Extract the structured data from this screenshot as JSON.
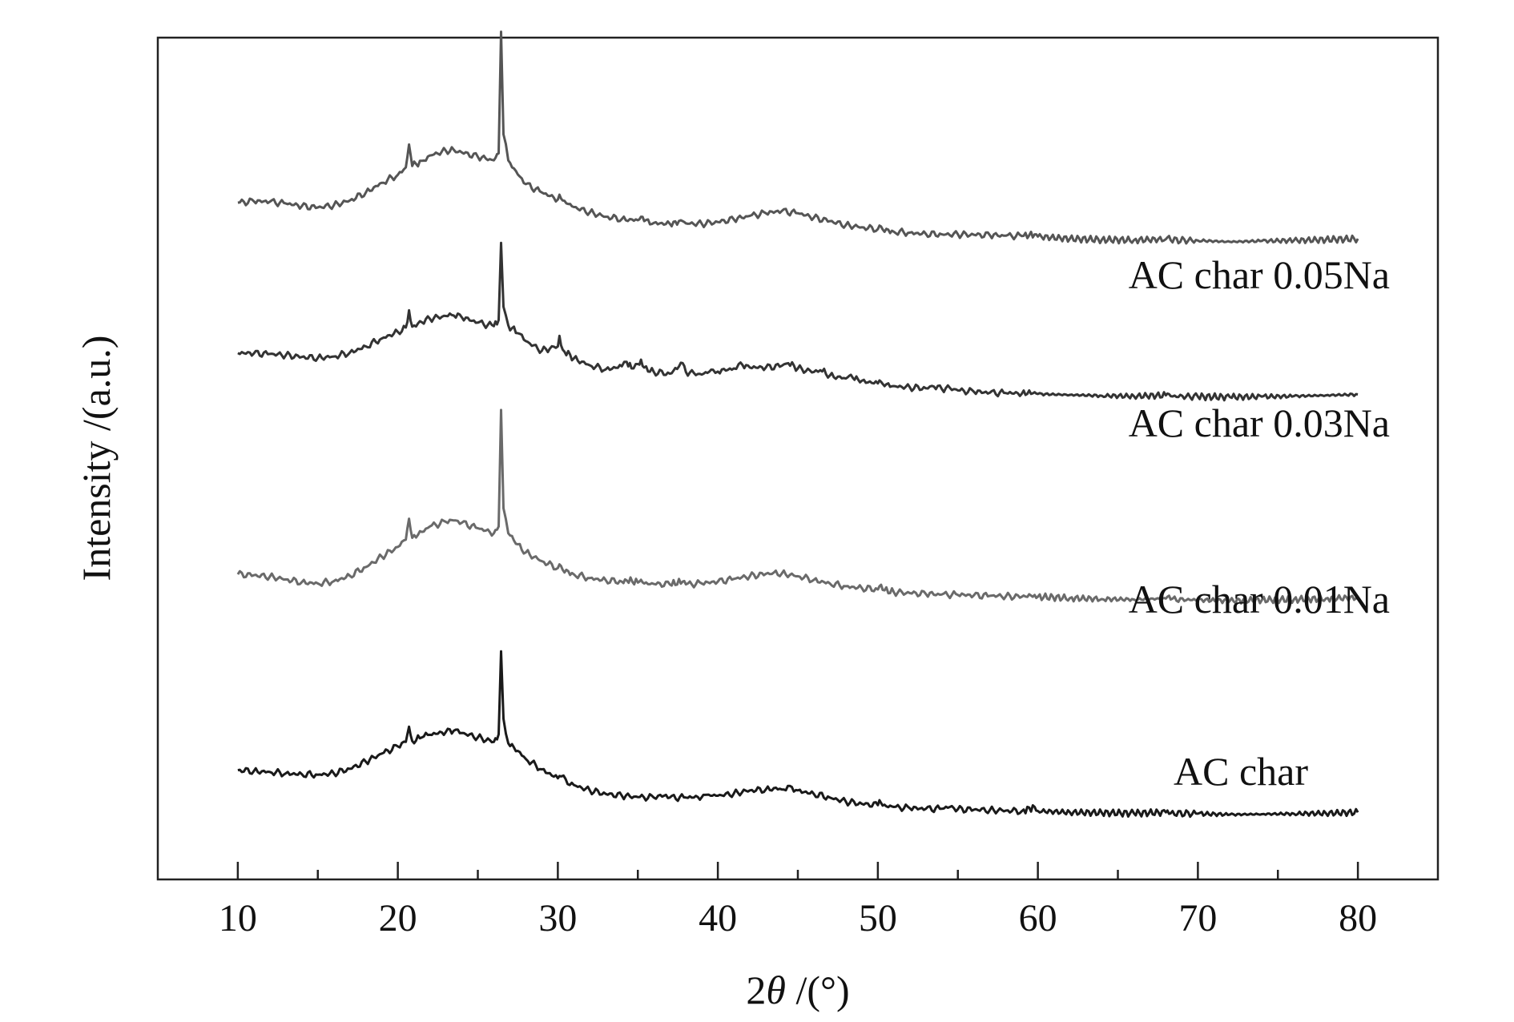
{
  "chart_data": {
    "type": "line",
    "title": "",
    "xlabel": {
      "prefix": "2",
      "symbol": "θ",
      "suffix": " /(°)"
    },
    "ylabel": "Intensity /(a.u.)",
    "xlim": [
      5,
      85
    ],
    "xticks": [
      10,
      20,
      30,
      40,
      50,
      60,
      70,
      80
    ],
    "grid": false,
    "legend": "none",
    "series": [
      {
        "name": "AC char 0.05Na",
        "color": "#555555",
        "points": [
          [
            10,
            300
          ],
          [
            11,
            303
          ],
          [
            12,
            302
          ],
          [
            13,
            298
          ],
          [
            14,
            292
          ],
          [
            15,
            289
          ],
          [
            16,
            294
          ],
          [
            17,
            305
          ],
          [
            18,
            323
          ],
          [
            19,
            345
          ],
          [
            20,
            363
          ],
          [
            20.5,
            380
          ],
          [
            20.7,
            432
          ],
          [
            20.9,
            383
          ],
          [
            21.5,
            395
          ],
          [
            22,
            407
          ],
          [
            23,
            418
          ],
          [
            23.5,
            420
          ],
          [
            24,
            414
          ],
          [
            25,
            404
          ],
          [
            26,
            396
          ],
          [
            26.3,
            412
          ],
          [
            26.45,
            688
          ],
          [
            26.6,
            455
          ],
          [
            26.9,
            396
          ],
          [
            27.5,
            364
          ],
          [
            28,
            342
          ],
          [
            29,
            323
          ],
          [
            30,
            307
          ],
          [
            30.1,
            318
          ],
          [
            30.3,
            305
          ],
          [
            31,
            290
          ],
          [
            32,
            278
          ],
          [
            33,
            268
          ],
          [
            34,
            263
          ],
          [
            35,
            260
          ],
          [
            35.2,
            268
          ],
          [
            35.4,
            258
          ],
          [
            36,
            254
          ],
          [
            37,
            252
          ],
          [
            37.8,
            258
          ],
          [
            38,
            253
          ],
          [
            39,
            252
          ],
          [
            40,
            256
          ],
          [
            41,
            262
          ],
          [
            42,
            270
          ],
          [
            43,
            276
          ],
          [
            44,
            281
          ],
          [
            45,
            276
          ],
          [
            46,
            266
          ],
          [
            47,
            258
          ],
          [
            48,
            249
          ],
          [
            49,
            244
          ],
          [
            50,
            240
          ],
          [
            50.1,
            248
          ],
          [
            50.3,
            239
          ],
          [
            51,
            234
          ],
          [
            52,
            232
          ],
          [
            53,
            229
          ],
          [
            54,
            228
          ],
          [
            55,
            228
          ],
          [
            56,
            227
          ],
          [
            57,
            226
          ],
          [
            58,
            225
          ],
          [
            59,
            224
          ],
          [
            59.8,
            228
          ],
          [
            60,
            223
          ],
          [
            62,
            218
          ],
          [
            64,
            216
          ],
          [
            66,
            215
          ],
          [
            68,
            217
          ],
          [
            68.1,
            221
          ],
          [
            68.3,
            215
          ],
          [
            70,
            214
          ],
          [
            72,
            211
          ],
          [
            74,
            213
          ],
          [
            76,
            214
          ],
          [
            78,
            216
          ],
          [
            80,
            218
          ]
        ]
      },
      {
        "name": "AC char 0.03Na",
        "color": "#333333",
        "points": [
          [
            10,
            255
          ],
          [
            11,
            254
          ],
          [
            12,
            253
          ],
          [
            13,
            250
          ],
          [
            14,
            246
          ],
          [
            15,
            244
          ],
          [
            16,
            247
          ],
          [
            17,
            256
          ],
          [
            18,
            270
          ],
          [
            19,
            288
          ],
          [
            20,
            303
          ],
          [
            20.5,
            313
          ],
          [
            20.7,
            352
          ],
          [
            20.9,
            315
          ],
          [
            21.5,
            325
          ],
          [
            22,
            333
          ],
          [
            23,
            339
          ],
          [
            23.5,
            340
          ],
          [
            24,
            336
          ],
          [
            25,
            324
          ],
          [
            26,
            316
          ],
          [
            26.3,
            330
          ],
          [
            26.45,
            505
          ],
          [
            26.6,
            360
          ],
          [
            26.9,
            318
          ],
          [
            27.5,
            300
          ],
          [
            28,
            282
          ],
          [
            29,
            260
          ],
          [
            29.5,
            265
          ],
          [
            30,
            270
          ],
          [
            30.1,
            294
          ],
          [
            30.3,
            263
          ],
          [
            31,
            243
          ],
          [
            32,
            227
          ],
          [
            33,
            218
          ],
          [
            34,
            225
          ],
          [
            34.3,
            235
          ],
          [
            34.6,
            220
          ],
          [
            35,
            230
          ],
          [
            35.2,
            240
          ],
          [
            35.4,
            222
          ],
          [
            36,
            212
          ],
          [
            37,
            208
          ],
          [
            37.8,
            232
          ],
          [
            38,
            212
          ],
          [
            39,
            206
          ],
          [
            39.7,
            217
          ],
          [
            40,
            213
          ],
          [
            41,
            220
          ],
          [
            41.3,
            230
          ],
          [
            42,
            222
          ],
          [
            43,
            222
          ],
          [
            44,
            226
          ],
          [
            44.4,
            232
          ],
          [
            45,
            220
          ],
          [
            46,
            212
          ],
          [
            46.4,
            216
          ],
          [
            47,
            204
          ],
          [
            48,
            197
          ],
          [
            48.2,
            203
          ],
          [
            49,
            192
          ],
          [
            50,
            186
          ],
          [
            50.1,
            193
          ],
          [
            50.3,
            185
          ],
          [
            51,
            180
          ],
          [
            52,
            177
          ],
          [
            53,
            175
          ],
          [
            53.5,
            179
          ],
          [
            54,
            173
          ],
          [
            54.5,
            176
          ],
          [
            55,
            170
          ],
          [
            56,
            167
          ],
          [
            57,
            165
          ],
          [
            58,
            164
          ],
          [
            59,
            163
          ],
          [
            59.8,
            166
          ],
          [
            60,
            162
          ],
          [
            62,
            160
          ],
          [
            64,
            158
          ],
          [
            66,
            157
          ],
          [
            68,
            159
          ],
          [
            68.1,
            163
          ],
          [
            68.3,
            157
          ],
          [
            70,
            156
          ],
          [
            72,
            155
          ],
          [
            74,
            156
          ],
          [
            76,
            157
          ],
          [
            78,
            159
          ],
          [
            80,
            161
          ]
        ]
      },
      {
        "name": "AC char 0.01Na",
        "color": "#6a6a6a",
        "points": [
          [
            10,
            170
          ],
          [
            11,
            168
          ],
          [
            12,
            165
          ],
          [
            13,
            159
          ],
          [
            14,
            153
          ],
          [
            15,
            150
          ],
          [
            16,
            155
          ],
          [
            17,
            167
          ],
          [
            18,
            186
          ],
          [
            19,
            209
          ],
          [
            20,
            230
          ],
          [
            20.5,
            246
          ],
          [
            20.7,
            292
          ],
          [
            20.9,
            250
          ],
          [
            21.5,
            263
          ],
          [
            22,
            275
          ],
          [
            23,
            285
          ],
          [
            23.5,
            288
          ],
          [
            24,
            283
          ],
          [
            25,
            271
          ],
          [
            26,
            260
          ],
          [
            26.3,
            275
          ],
          [
            26.45,
            530
          ],
          [
            26.6,
            315
          ],
          [
            26.9,
            260
          ],
          [
            27.5,
            236
          ],
          [
            28,
            218
          ],
          [
            29,
            199
          ],
          [
            30,
            184
          ],
          [
            30.1,
            192
          ],
          [
            30.3,
            180
          ],
          [
            31,
            170
          ],
          [
            32,
            162
          ],
          [
            33,
            157
          ],
          [
            34,
            154
          ],
          [
            34.2,
            159
          ],
          [
            35,
            152
          ],
          [
            35.2,
            158
          ],
          [
            35.4,
            150
          ],
          [
            36,
            149
          ],
          [
            37,
            148
          ],
          [
            37.8,
            154
          ],
          [
            38,
            148
          ],
          [
            39,
            150
          ],
          [
            40,
            154
          ],
          [
            41,
            160
          ],
          [
            42,
            166
          ],
          [
            43,
            171
          ],
          [
            43.5,
            174
          ],
          [
            44,
            172
          ],
          [
            45,
            166
          ],
          [
            46,
            158
          ],
          [
            47,
            150
          ],
          [
            48,
            144
          ],
          [
            49,
            140
          ],
          [
            50,
            137
          ],
          [
            50.1,
            144
          ],
          [
            50.3,
            136
          ],
          [
            51,
            131
          ],
          [
            52,
            129
          ],
          [
            53,
            127
          ],
          [
            54,
            126
          ],
          [
            55,
            125
          ],
          [
            56,
            124
          ],
          [
            57,
            123
          ],
          [
            58,
            122
          ],
          [
            59,
            121
          ],
          [
            59.8,
            125
          ],
          [
            60,
            121
          ],
          [
            62,
            118
          ],
          [
            64,
            116
          ],
          [
            66,
            115
          ],
          [
            68,
            117
          ],
          [
            68.1,
            121
          ],
          [
            68.3,
            115
          ],
          [
            70,
            114
          ],
          [
            72,
            112
          ],
          [
            74,
            114
          ],
          [
            76,
            115
          ],
          [
            78,
            117
          ],
          [
            80,
            119
          ]
        ]
      },
      {
        "name": "AC char",
        "color": "#1a1a1a",
        "points": [
          [
            10,
            115
          ],
          [
            11,
            113
          ],
          [
            12,
            111
          ],
          [
            13,
            108
          ],
          [
            14,
            106
          ],
          [
            15,
            105
          ],
          [
            16,
            108
          ],
          [
            17,
            118
          ],
          [
            18,
            134
          ],
          [
            19,
            152
          ],
          [
            20,
            168
          ],
          [
            20.5,
            178
          ],
          [
            20.7,
            212
          ],
          [
            20.9,
            180
          ],
          [
            21.5,
            188
          ],
          [
            22,
            194
          ],
          [
            23,
            200
          ],
          [
            23.5,
            203
          ],
          [
            24,
            198
          ],
          [
            25,
            188
          ],
          [
            26,
            178
          ],
          [
            26.3,
            195
          ],
          [
            26.45,
            380
          ],
          [
            26.6,
            230
          ],
          [
            26.9,
            175
          ],
          [
            27.5,
            158
          ],
          [
            28,
            140
          ],
          [
            29,
            117
          ],
          [
            30,
            97
          ],
          [
            30.1,
            102
          ],
          [
            31,
            82
          ],
          [
            32,
            70
          ],
          [
            33,
            62
          ],
          [
            34,
            58
          ],
          [
            35,
            55
          ],
          [
            36,
            54
          ],
          [
            36.4,
            60
          ],
          [
            37,
            54
          ],
          [
            38,
            54
          ],
          [
            39,
            55
          ],
          [
            39.2,
            60
          ],
          [
            40,
            58
          ],
          [
            41,
            63
          ],
          [
            42,
            70
          ],
          [
            43,
            72
          ],
          [
            43.5,
            75
          ],
          [
            44,
            72
          ],
          [
            44.5,
            80
          ],
          [
            45,
            70
          ],
          [
            46,
            62
          ],
          [
            47,
            54
          ],
          [
            48,
            45
          ],
          [
            49,
            40
          ],
          [
            50,
            37
          ],
          [
            50.1,
            48
          ],
          [
            50.3,
            36
          ],
          [
            51,
            33
          ],
          [
            52,
            30
          ],
          [
            53,
            29
          ],
          [
            54,
            29
          ],
          [
            54.5,
            33
          ],
          [
            55,
            28
          ],
          [
            56,
            27
          ],
          [
            57,
            26
          ],
          [
            58,
            25
          ],
          [
            59,
            24
          ],
          [
            59.8,
            33
          ],
          [
            60,
            24
          ],
          [
            62,
            21
          ],
          [
            64,
            20
          ],
          [
            66,
            19
          ],
          [
            68,
            21
          ],
          [
            68.1,
            25
          ],
          [
            68.3,
            19
          ],
          [
            70,
            18
          ],
          [
            72,
            16
          ],
          [
            74,
            17
          ],
          [
            76,
            18
          ],
          [
            78,
            19
          ],
          [
            80,
            21
          ]
        ]
      }
    ]
  }
}
